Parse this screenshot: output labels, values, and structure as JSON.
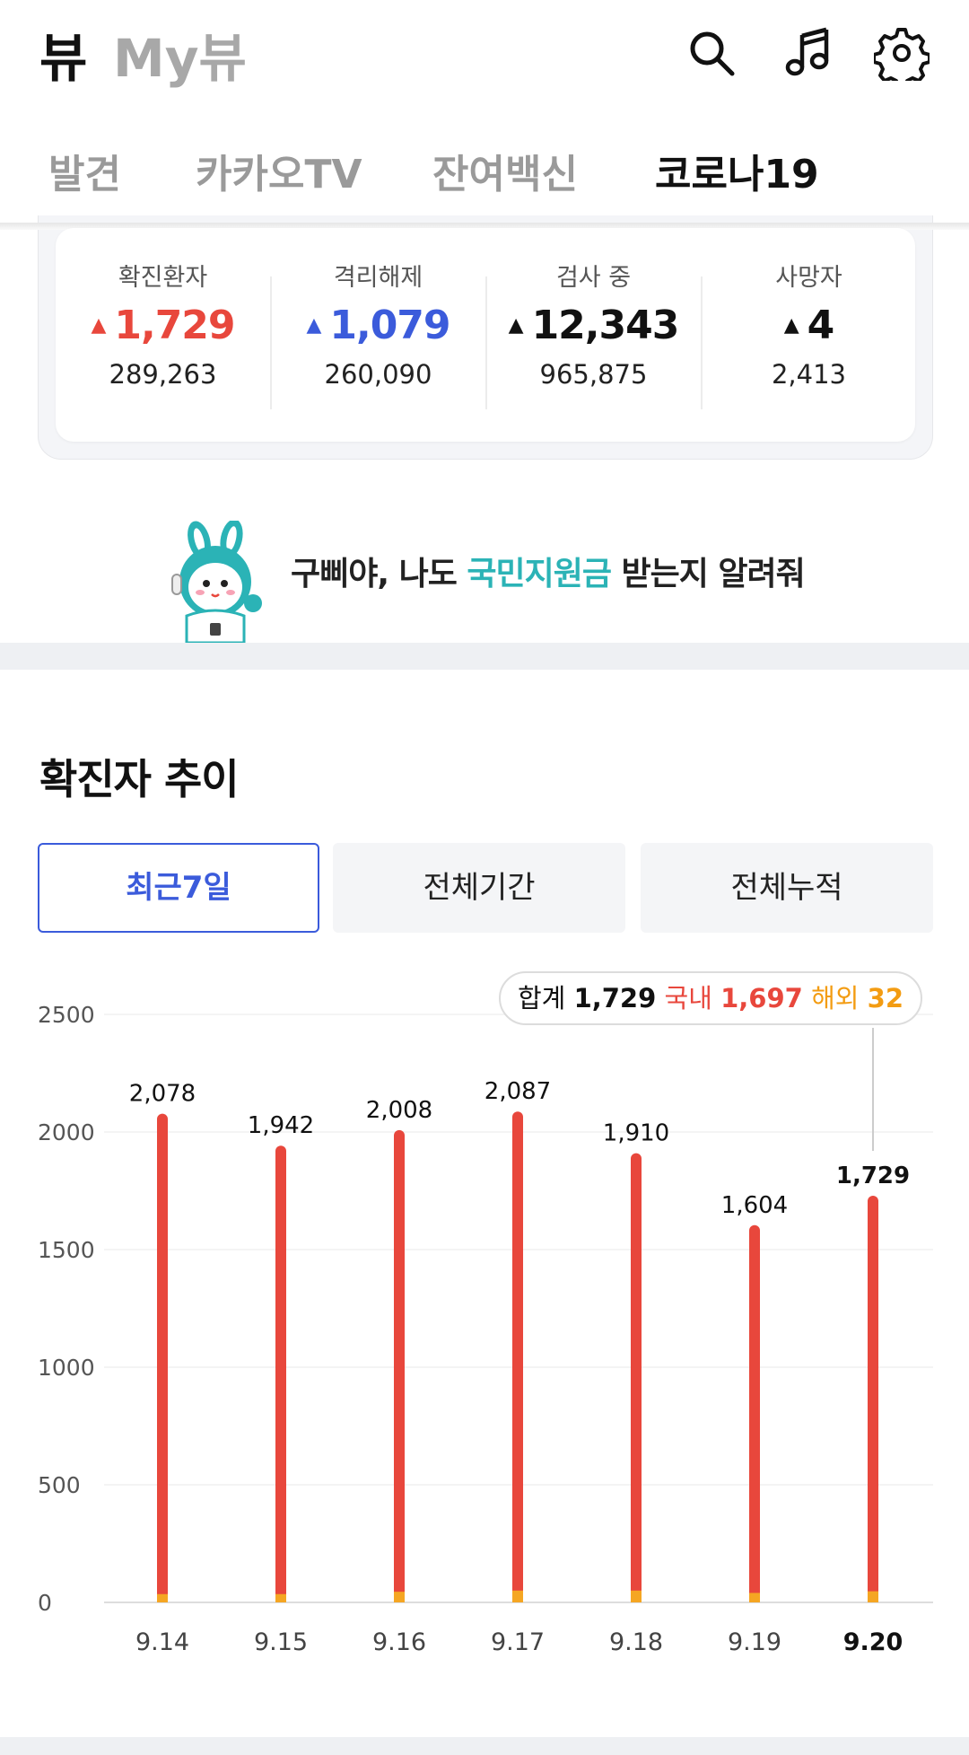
{
  "header": {
    "logo_main": "뷰",
    "logo_sub": "My뷰",
    "icons": [
      "search-icon",
      "music-note-icon",
      "gear-icon"
    ]
  },
  "tabs": [
    {
      "label": "발견",
      "active": false
    },
    {
      "label": "카카오TV",
      "active": false
    },
    {
      "label": "잔여백신",
      "active": false
    },
    {
      "label": "코로나19",
      "active": true
    }
  ],
  "stats": [
    {
      "label": "확진환자",
      "delta": "1,729",
      "total": "289,263",
      "color": "#e8473c"
    },
    {
      "label": "격리해제",
      "delta": "1,079",
      "total": "260,090",
      "color": "#3b5bdb"
    },
    {
      "label": "검사 중",
      "delta": "12,343",
      "total": "965,875",
      "color": "#111111"
    },
    {
      "label": "사망자",
      "delta": "4",
      "total": "2,413",
      "color": "#111111"
    }
  ],
  "banner": {
    "text_before": "구삐야, 나도 ",
    "text_highlight": "국민지원금",
    "text_after": " 받는지 알려줘",
    "highlight_color": "#2bb3b6"
  },
  "section": {
    "title": "확진자 추이",
    "buttons": [
      {
        "label": "최근7일",
        "active": true
      },
      {
        "label": "전체기간",
        "active": false
      },
      {
        "label": "전체누적",
        "active": false
      }
    ]
  },
  "tooltip": {
    "total_label": "합계",
    "total_value": "1,729",
    "domestic_label": "국내",
    "domestic_value": "1,697",
    "overseas_label": "해외",
    "overseas_value": "32"
  },
  "chart_data": {
    "type": "bar",
    "categories": [
      "9.14",
      "9.15",
      "9.16",
      "9.17",
      "9.18",
      "9.19",
      "9.20"
    ],
    "series": [
      {
        "values": [
          2078,
          1942,
          2008,
          2087,
          1910,
          1604,
          1729
        ],
        "color": "#e8473c"
      }
    ],
    "value_labels": [
      "2,078",
      "1,942",
      "2,008",
      "2,087",
      "1,910",
      "1,604",
      "1,729"
    ],
    "overseas_values": [
      20,
      20,
      30,
      35,
      35,
      25,
      32
    ],
    "overseas_color": "#f5a623",
    "yticks": [
      0,
      500,
      1000,
      1500,
      2000,
      2500
    ],
    "ylim": [
      0,
      2500
    ],
    "highlight_index": 6,
    "grid": true
  }
}
